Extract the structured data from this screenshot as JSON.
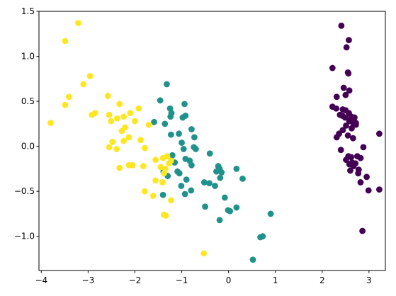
{
  "chart_data": {
    "type": "scatter",
    "title": "",
    "xlabel": "",
    "ylabel": "",
    "xlim": [
      -4.05,
      3.35
    ],
    "ylim": [
      -1.38,
      1.5
    ],
    "xticks": [
      -4,
      -3,
      -2,
      -1,
      0,
      1,
      2,
      3
    ],
    "yticks": [
      -1.0,
      -0.5,
      0.0,
      0.5,
      1.0,
      1.5
    ],
    "xtick_labels": [
      "−4",
      "−3",
      "−2",
      "−1",
      "0",
      "1",
      "2",
      "3"
    ],
    "ytick_labels": [
      "−1.0",
      "−0.5",
      "0.0",
      "0.5",
      "1.0",
      "1.5"
    ],
    "grid": false,
    "legend": false,
    "series": [
      {
        "color": "#440154",
        "points": [
          [
            2.41,
            1.34
          ],
          [
            2.57,
            1.18
          ],
          [
            2.52,
            1.1
          ],
          [
            2.22,
            0.87
          ],
          [
            2.55,
            0.82
          ],
          [
            2.56,
            0.81
          ],
          [
            2.46,
            0.65
          ],
          [
            2.58,
            0.62
          ],
          [
            2.5,
            0.57
          ],
          [
            2.31,
            0.55
          ],
          [
            2.22,
            0.44
          ],
          [
            2.3,
            0.42
          ],
          [
            2.44,
            0.41
          ],
          [
            2.5,
            0.4
          ],
          [
            2.57,
            0.37
          ],
          [
            2.38,
            0.35
          ],
          [
            2.43,
            0.34
          ],
          [
            2.49,
            0.32
          ],
          [
            2.62,
            0.33
          ],
          [
            2.69,
            0.32
          ],
          [
            2.63,
            0.3
          ],
          [
            2.58,
            0.28
          ],
          [
            2.72,
            0.26
          ],
          [
            2.67,
            0.25
          ],
          [
            2.72,
            0.24
          ],
          [
            2.51,
            0.23
          ],
          [
            2.63,
            0.2
          ],
          [
            2.44,
            0.18
          ],
          [
            2.36,
            0.14
          ],
          [
            2.55,
            0.12
          ],
          [
            2.31,
            0.1
          ],
          [
            2.66,
            0.09
          ],
          [
            3.22,
            0.14
          ],
          [
            2.4,
            -0.04
          ],
          [
            2.88,
            -0.01
          ],
          [
            2.56,
            -0.11
          ],
          [
            2.62,
            -0.12
          ],
          [
            2.75,
            -0.11
          ],
          [
            2.82,
            -0.13
          ],
          [
            2.51,
            -0.15
          ],
          [
            2.64,
            -0.18
          ],
          [
            2.58,
            -0.2
          ],
          [
            2.71,
            -0.19
          ],
          [
            2.67,
            -0.22
          ],
          [
            2.78,
            -0.26
          ],
          [
            2.6,
            -0.27
          ],
          [
            2.77,
            -0.3
          ],
          [
            2.95,
            -0.34
          ],
          [
            2.82,
            -0.4
          ],
          [
            2.99,
            -0.49
          ],
          [
            3.22,
            -0.48
          ],
          [
            2.86,
            -0.94
          ]
        ]
      },
      {
        "color": "#21918c",
        "points": [
          [
            -1.32,
            0.69
          ],
          [
            -1.46,
            0.51
          ],
          [
            -0.94,
            0.47
          ],
          [
            -1.25,
            0.42
          ],
          [
            -1.22,
            0.37
          ],
          [
            -1.24,
            0.33
          ],
          [
            -0.98,
            0.32
          ],
          [
            -0.92,
            0.34
          ],
          [
            -1.59,
            0.27
          ],
          [
            -1.36,
            0.25
          ],
          [
            -1.23,
            0.13
          ],
          [
            -1.06,
            0.14
          ],
          [
            -0.79,
            0.19
          ],
          [
            -0.73,
            0.1
          ],
          [
            -1.0,
            0.04
          ],
          [
            -0.96,
            -0.03
          ],
          [
            -0.74,
            -0.01
          ],
          [
            -0.7,
            -0.03
          ],
          [
            -1.2,
            -0.1
          ],
          [
            -0.92,
            -0.14
          ],
          [
            -0.83,
            -0.16
          ],
          [
            -0.4,
            -0.08
          ],
          [
            -1.15,
            -0.18
          ],
          [
            -0.79,
            -0.21
          ],
          [
            -0.22,
            -0.22
          ],
          [
            -0.19,
            -0.25
          ],
          [
            -1.39,
            -0.28
          ],
          [
            -1.09,
            -0.28
          ],
          [
            -0.26,
            -0.28
          ],
          [
            -0.15,
            -0.29
          ],
          [
            -1.05,
            -0.3
          ],
          [
            -1.3,
            -0.33
          ],
          [
            -0.18,
            -0.35
          ],
          [
            0.17,
            -0.25
          ],
          [
            -0.9,
            -0.37
          ],
          [
            -0.52,
            -0.4
          ],
          [
            0.3,
            -0.36
          ],
          [
            -0.41,
            -0.41
          ],
          [
            -1.01,
            -0.44
          ],
          [
            -0.29,
            -0.44
          ],
          [
            -0.8,
            -0.49
          ],
          [
            -1.4,
            -0.54
          ],
          [
            -0.93,
            -0.53
          ],
          [
            -0.08,
            -0.57
          ],
          [
            -0.5,
            -0.67
          ],
          [
            -0.01,
            -0.71
          ],
          [
            0.03,
            -0.72
          ],
          [
            0.17,
            -0.68
          ],
          [
            0.9,
            -0.75
          ],
          [
            -0.19,
            -0.82
          ],
          [
            0.68,
            -1.01
          ],
          [
            0.73,
            -1.0
          ],
          [
            0.52,
            -1.26
          ]
        ]
      },
      {
        "color": "#fde725",
        "points": [
          [
            -3.21,
            1.37
          ],
          [
            -3.49,
            1.17
          ],
          [
            -2.96,
            0.78
          ],
          [
            -3.1,
            0.69
          ],
          [
            -2.58,
            0.56
          ],
          [
            -3.41,
            0.55
          ],
          [
            -2.33,
            0.47
          ],
          [
            -1.92,
            0.42
          ],
          [
            -3.49,
            0.46
          ],
          [
            -2.1,
            0.37
          ],
          [
            -2.92,
            0.35
          ],
          [
            -2.85,
            0.37
          ],
          [
            -2.55,
            0.35
          ],
          [
            -2.24,
            0.33
          ],
          [
            -2.38,
            0.31
          ],
          [
            -2.51,
            0.28
          ],
          [
            -2.0,
            0.28
          ],
          [
            -1.7,
            0.24
          ],
          [
            -2.28,
            0.17
          ],
          [
            -3.8,
            0.26
          ],
          [
            -2.21,
            0.21
          ],
          [
            -2.13,
            0.1
          ],
          [
            -1.88,
            0.07
          ],
          [
            -2.48,
            0.05
          ],
          [
            -2.24,
            0.06
          ],
          [
            -1.79,
            -0.02
          ],
          [
            -2.55,
            -0.01
          ],
          [
            -2.39,
            -0.03
          ],
          [
            -1.56,
            -0.15
          ],
          [
            -1.4,
            -0.13
          ],
          [
            -1.31,
            -0.11
          ],
          [
            -1.23,
            -0.16
          ],
          [
            -1.27,
            -0.19
          ],
          [
            -1.45,
            -0.23
          ],
          [
            -2.33,
            -0.24
          ],
          [
            -2.13,
            -0.21
          ],
          [
            -2.05,
            -0.21
          ],
          [
            -1.82,
            -0.22
          ],
          [
            -1.35,
            -0.25
          ],
          [
            -1.38,
            -0.3
          ],
          [
            -1.56,
            -0.38
          ],
          [
            -1.41,
            -0.4
          ],
          [
            -1.79,
            -0.5
          ],
          [
            -1.61,
            -0.55
          ],
          [
            -1.23,
            -0.6
          ],
          [
            -1.38,
            -0.76
          ],
          [
            -1.34,
            -0.77
          ],
          [
            -0.53,
            -1.19
          ]
        ]
      }
    ]
  }
}
